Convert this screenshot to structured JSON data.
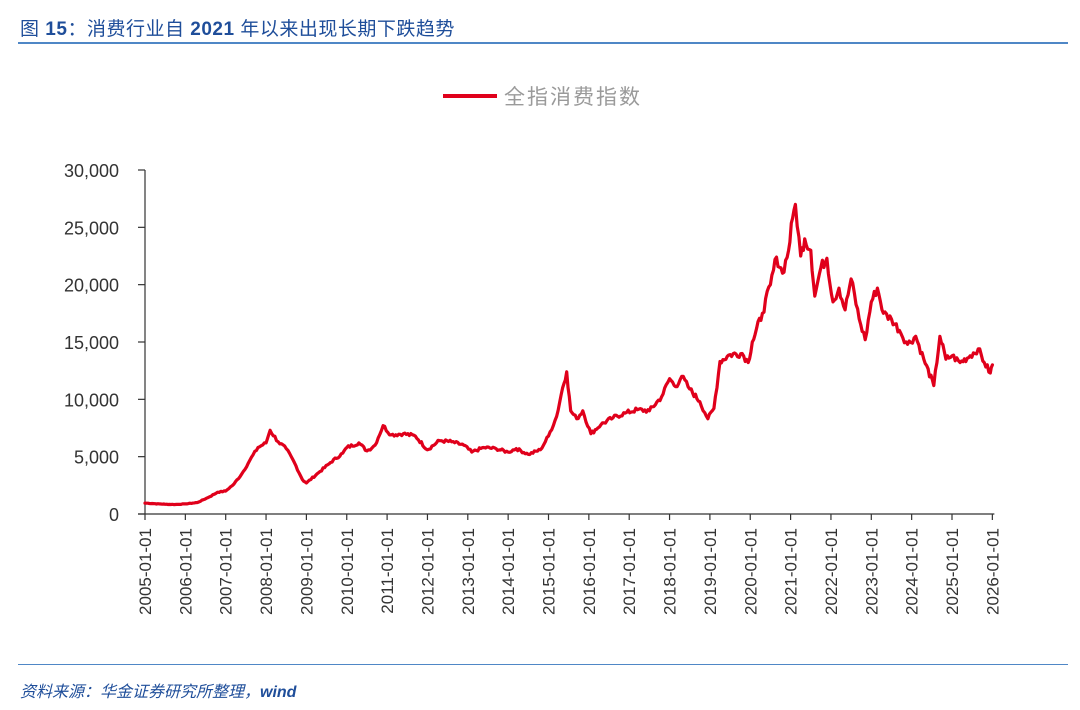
{
  "figure": {
    "title_prefix": "图",
    "title_number": "15",
    "title_sep": "：",
    "title_text_a": "消费行业自",
    "title_year": "2021",
    "title_text_b": "年以来出现长期下跌趋势",
    "source_text": "资料来源：华金证券研究所整理，",
    "source_wind": "wind"
  },
  "colors": {
    "line": "#e0001b",
    "title": "#1f4e9a",
    "rule": "#4f87c6",
    "axis": "#333333",
    "legend_text": "#9a9a9a"
  },
  "chart_data": {
    "type": "line",
    "title": "",
    "xlabel": "",
    "ylabel": "",
    "ylim": [
      0,
      30000
    ],
    "yticks": [
      0,
      5000,
      10000,
      15000,
      20000,
      25000,
      30000
    ],
    "ytick_labels": [
      "0",
      "5,000",
      "10,000",
      "15,000",
      "20,000",
      "25,000",
      "30,000"
    ],
    "xlim": [
      2005.0,
      2026.05
    ],
    "xtick_labels": [
      "2005-01-01",
      "2006-01-01",
      "2007-01-01",
      "2008-01-01",
      "2009-01-01",
      "2010-01-01",
      "2011-01-01",
      "2012-01-01",
      "2013-01-01",
      "2014-01-01",
      "2015-01-01",
      "2016-01-01",
      "2017-01-01",
      "2018-01-01",
      "2019-01-01",
      "2020-01-01",
      "2021-01-01",
      "2022-01-01",
      "2023-01-01",
      "2024-01-01",
      "2025-01-01",
      "2026-01-01"
    ],
    "grid": false,
    "legend_position": "top-center",
    "series": [
      {
        "name": "全指消费指数",
        "color": "#e0001b",
        "x": [
          2005.0,
          2005.25,
          2005.5,
          2005.75,
          2006.0,
          2006.3,
          2006.6,
          2006.8,
          2007.0,
          2007.2,
          2007.4,
          2007.6,
          2007.8,
          2008.0,
          2008.1,
          2008.3,
          2008.5,
          2008.7,
          2008.9,
          2009.0,
          2009.3,
          2009.6,
          2009.9,
          2010.0,
          2010.3,
          2010.5,
          2010.7,
          2010.9,
          2011.1,
          2011.4,
          2011.7,
          2012.0,
          2012.3,
          2012.6,
          2012.9,
          2013.1,
          2013.4,
          2013.7,
          2014.0,
          2014.2,
          2014.5,
          2014.8,
          2015.0,
          2015.2,
          2015.35,
          2015.45,
          2015.55,
          2015.7,
          2015.85,
          2016.05,
          2016.3,
          2016.6,
          2016.9,
          2017.2,
          2017.5,
          2017.8,
          2018.0,
          2018.15,
          2018.3,
          2018.5,
          2018.75,
          2018.95,
          2019.1,
          2019.25,
          2019.5,
          2019.8,
          2019.95,
          2020.05,
          2020.3,
          2020.5,
          2020.65,
          2020.8,
          2020.95,
          2021.05,
          2021.12,
          2021.25,
          2021.35,
          2021.5,
          2021.6,
          2021.75,
          2021.9,
          2022.05,
          2022.2,
          2022.35,
          2022.5,
          2022.7,
          2022.85,
          2023.0,
          2023.15,
          2023.3,
          2023.5,
          2023.7,
          2023.9,
          2024.1,
          2024.3,
          2024.55,
          2024.7,
          2024.85,
          2025.0,
          2025.2,
          2025.45,
          2025.65,
          2025.8,
          2025.95,
          2026.0
        ],
        "values": [
          950,
          900,
          850,
          830,
          880,
          1000,
          1500,
          1900,
          2000,
          2600,
          3500,
          4700,
          5800,
          6200,
          7300,
          6300,
          5700,
          4500,
          3000,
          2700,
          3600,
          4500,
          5300,
          5800,
          6200,
          5500,
          6000,
          7700,
          6900,
          7000,
          6800,
          5600,
          6400,
          6300,
          6000,
          5400,
          5800,
          5700,
          5400,
          5700,
          5200,
          5600,
          6800,
          8500,
          11000,
          12400,
          9000,
          8300,
          9000,
          7000,
          7800,
          8400,
          8800,
          9100,
          9000,
          10200,
          11800,
          11100,
          12000,
          10900,
          9800,
          8300,
          9200,
          13300,
          13900,
          14000,
          13200,
          15000,
          17500,
          20000,
          22400,
          21000,
          23000,
          25800,
          27000,
          22500,
          24000,
          23000,
          19000,
          21500,
          22300,
          18500,
          19700,
          17800,
          20500,
          17000,
          15200,
          18500,
          19700,
          17500,
          17000,
          16000,
          14800,
          15500,
          13500,
          11200,
          15500,
          13500,
          13800,
          13200,
          13800,
          14400,
          13200,
          12300,
          13000
        ]
      }
    ]
  }
}
